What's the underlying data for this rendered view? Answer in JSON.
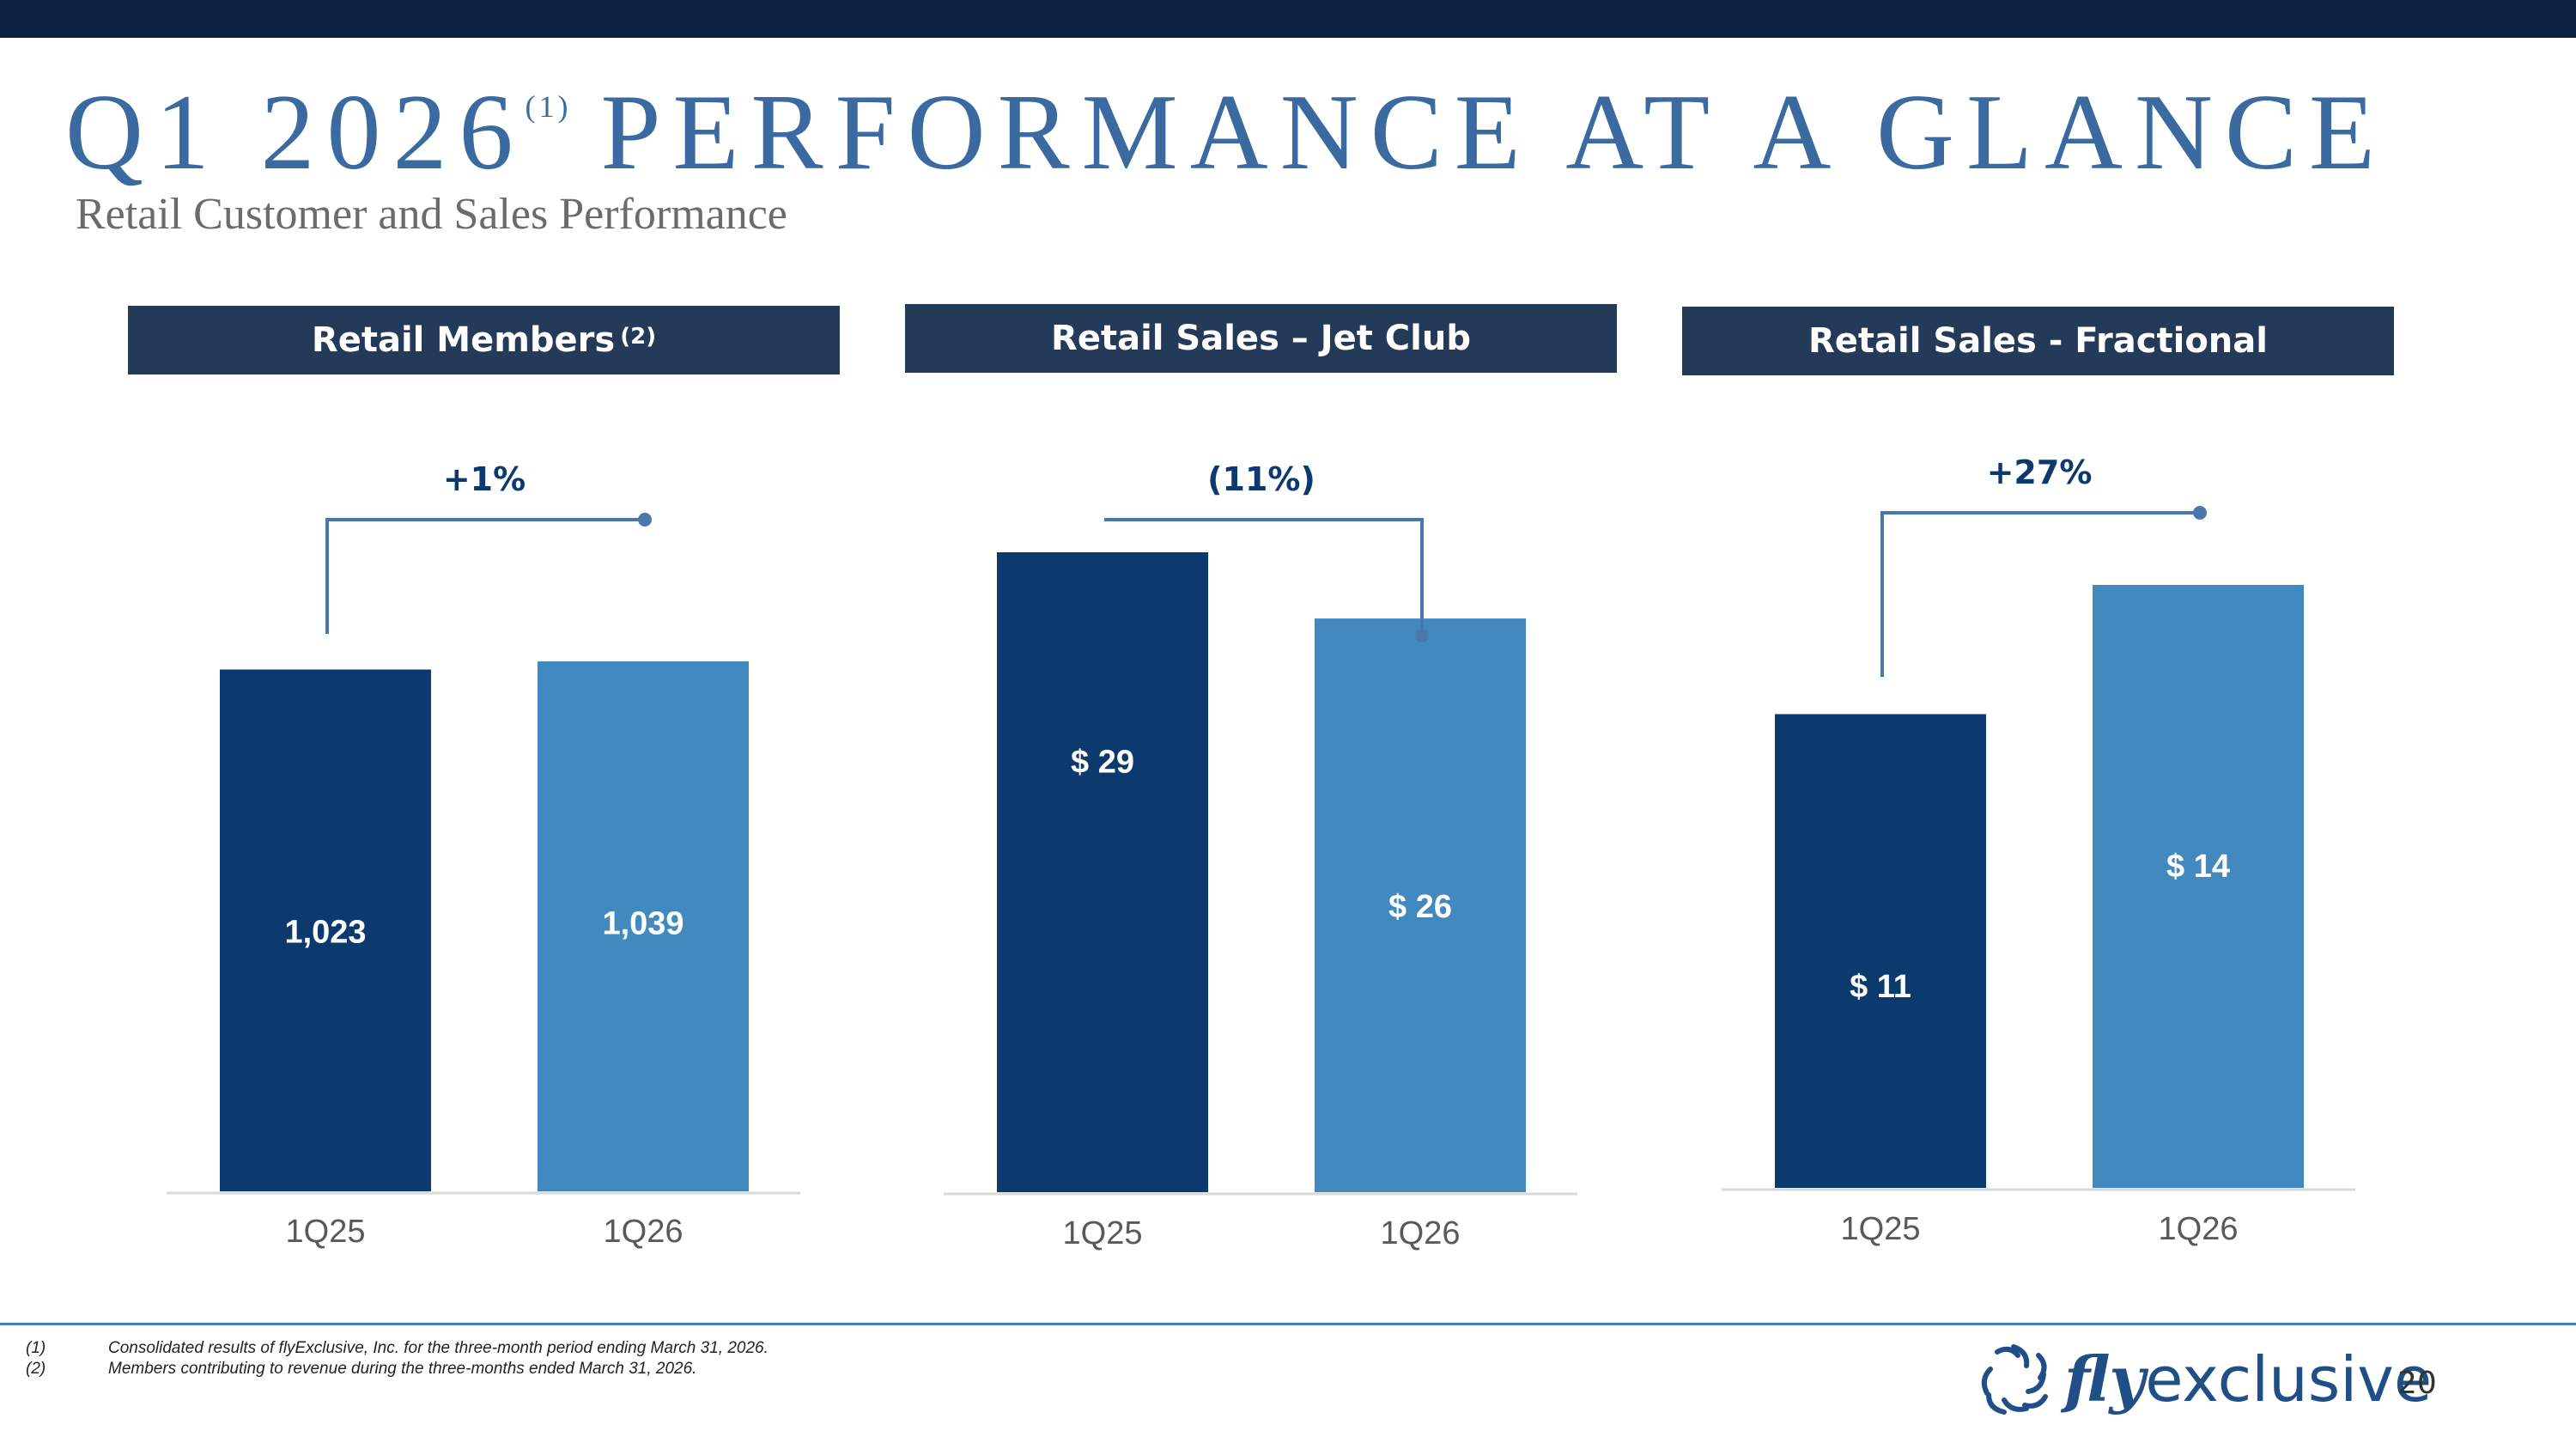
{
  "title": {
    "main": "Q1 2026",
    "footnote_ref": "(1)",
    "rest": "PERFORMANCE AT A GLANCE"
  },
  "subtitle": "Retail Customer and Sales Performance",
  "panels": [
    {
      "header": "Retail Members",
      "header_sup": "(2)"
    },
    {
      "header": "Retail Sales – Jet Club",
      "header_sup": ""
    },
    {
      "header": "Retail Sales - Fractional",
      "header_sup": ""
    }
  ],
  "colors": {
    "bar_1q25": "#0c3a6e",
    "bar_1q26": "#4289bf",
    "header_bg": "#243a59",
    "title": "#3a6aa0",
    "connector": "#4a78ad",
    "change_text": "#0c3a6e"
  },
  "chart_data": [
    {
      "type": "bar",
      "categories": [
        "1Q25",
        "1Q26"
      ],
      "values": [
        1023,
        1039
      ],
      "data_labels": [
        "1,023",
        "1,039"
      ],
      "change_label": "+1%",
      "direction": "up"
    },
    {
      "type": "bar",
      "categories": [
        "1Q25",
        "1Q26"
      ],
      "values": [
        29,
        26
      ],
      "data_labels": [
        "$ 29",
        "$ 26"
      ],
      "change_label": "(11%)",
      "direction": "down"
    },
    {
      "type": "bar",
      "categories": [
        "1Q25",
        "1Q26"
      ],
      "values": [
        11,
        14
      ],
      "data_labels": [
        "$ 11",
        "$ 14"
      ],
      "change_label": "+27%",
      "direction": "up"
    }
  ],
  "footnotes": [
    {
      "num": "(1)",
      "text": "Consolidated results of flyExclusive, Inc. for the three-month period ending March 31, 2026."
    },
    {
      "num": "(2)",
      "text": "Members contributing to revenue during the three-months ended March 31, 2026."
    }
  ],
  "logo": {
    "part1": "fly",
    "part2": "exclusive"
  },
  "page_number": "20"
}
